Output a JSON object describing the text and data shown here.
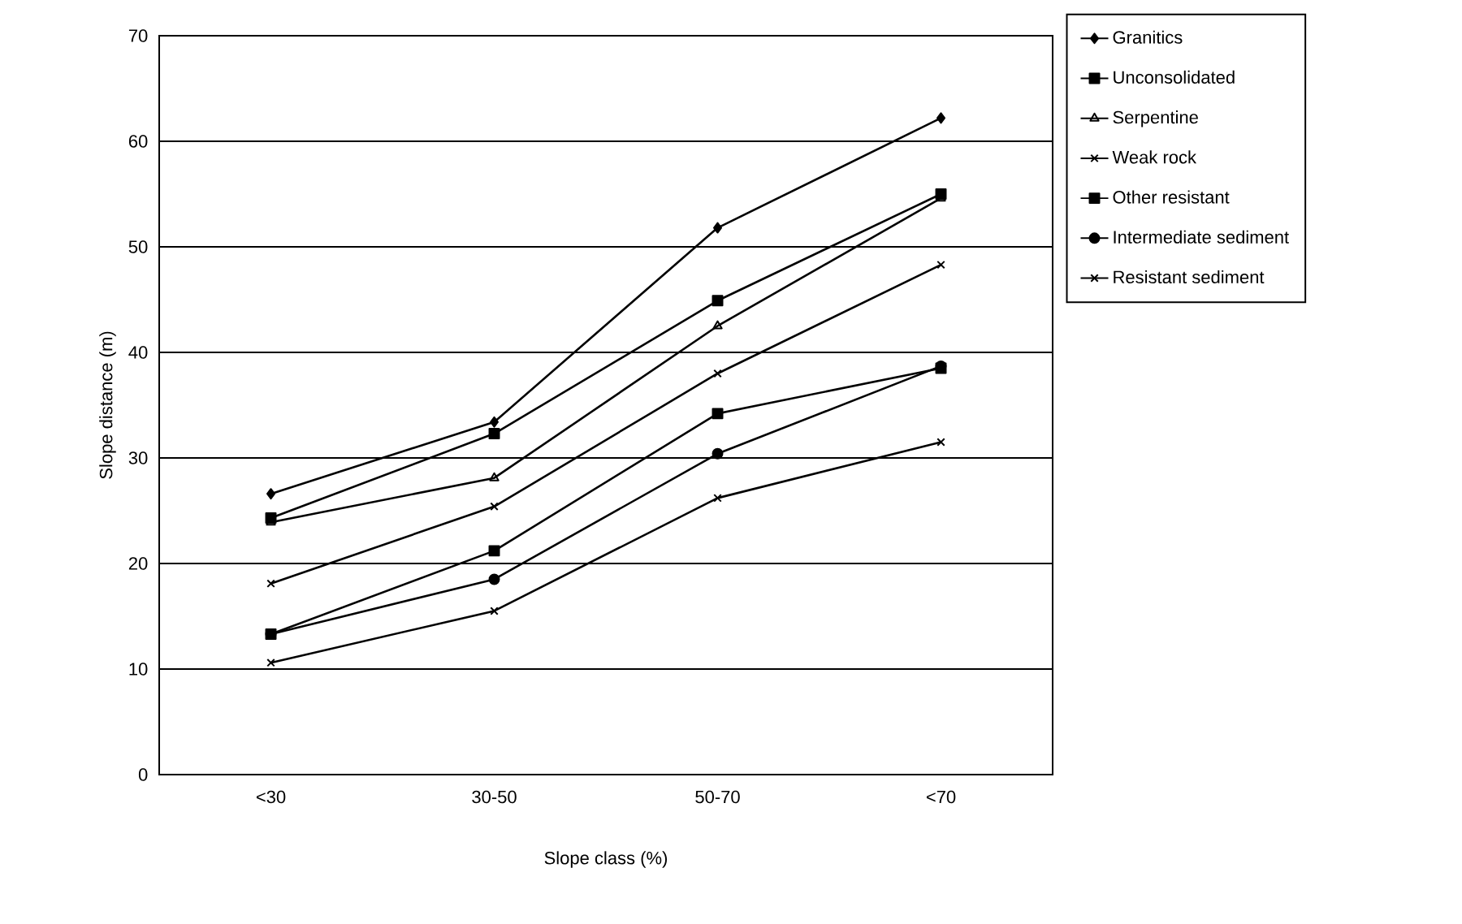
{
  "chart_data": {
    "type": "line",
    "xlabel": "Slope class (%)",
    "ylabel": "Slope distance (m)",
    "categories": [
      "<30",
      "30-50",
      "50-70",
      "<70"
    ],
    "ylim": [
      0,
      70
    ],
    "yticks": [
      0,
      10,
      20,
      30,
      40,
      50,
      60,
      70
    ],
    "grid": "y",
    "legend": "right",
    "series": [
      {
        "name": "Granitics",
        "color": "#000000",
        "marker": "diamond",
        "values": [
          26.6,
          33.4,
          51.8,
          62.2
        ]
      },
      {
        "name": "Unconsolidated",
        "color": "#000000",
        "marker": "square",
        "values": [
          24.3,
          32.3,
          44.9,
          55.0
        ]
      },
      {
        "name": "Serpentine",
        "color": "#000000",
        "marker": "triangle",
        "values": [
          23.9,
          28.1,
          42.5,
          54.6
        ]
      },
      {
        "name": "Weak rock",
        "color": "#000000",
        "marker": "cross",
        "values": [
          18.1,
          25.4,
          38.0,
          48.3
        ]
      },
      {
        "name": "Other resistant",
        "color": "#000000",
        "marker": "square",
        "values": [
          13.3,
          21.2,
          34.2,
          38.5
        ]
      },
      {
        "name": "Intermediate sediment",
        "color": "#000000",
        "marker": "circle",
        "values": [
          13.3,
          18.5,
          30.4,
          38.7
        ]
      },
      {
        "name": "Resistant sediment",
        "color": "#000000",
        "marker": "cross",
        "values": [
          10.6,
          15.5,
          26.2,
          31.5
        ]
      }
    ]
  }
}
